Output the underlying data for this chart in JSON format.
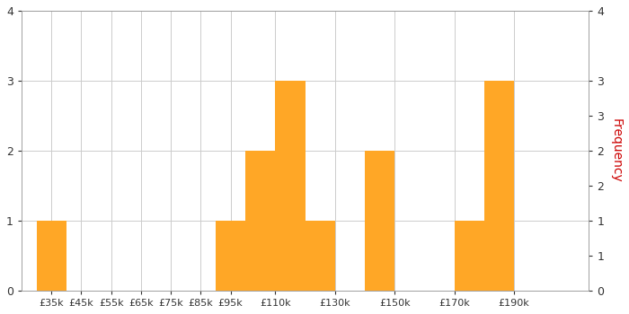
{
  "bar_color": "#FFA726",
  "background_color": "#FFFFFF",
  "plot_bg_color": "#FFFFFF",
  "ylabel": "Frequency",
  "bin_edges": [
    30000,
    40000,
    50000,
    60000,
    70000,
    80000,
    90000,
    100000,
    110000,
    120000,
    130000,
    140000,
    150000,
    160000,
    170000,
    180000,
    190000,
    200000,
    210000
  ],
  "frequencies": [
    1,
    0,
    0,
    0,
    0,
    0,
    1,
    2,
    3,
    1,
    0,
    2,
    0,
    0,
    1,
    3,
    0,
    0
  ],
  "xtick_positions": [
    35000,
    45000,
    55000,
    65000,
    75000,
    85000,
    95000,
    110000,
    130000,
    150000,
    170000,
    190000
  ],
  "xtick_labels": [
    "£35k",
    "£45k",
    "£55k",
    "£65k",
    "£75k",
    "£85k",
    "£95k",
    "£110k",
    "£130k",
    "£150k",
    "£170k",
    "£190k"
  ],
  "yticks_left": [
    0,
    1,
    2,
    3,
    4
  ],
  "yticks_right": [
    0,
    1,
    1,
    2,
    2,
    3,
    3,
    4
  ],
  "yticks_right_positions": [
    0,
    0.5,
    1.0,
    1.5,
    2.0,
    2.5,
    3.0,
    4.0
  ],
  "ylim": [
    0,
    4
  ],
  "xlim": [
    25000,
    215000
  ],
  "grid_color": "#CCCCCC",
  "tick_label_color": "#CC0000",
  "ylabel_color": "#CC0000",
  "figsize": [
    7.0,
    3.5
  ],
  "dpi": 100
}
